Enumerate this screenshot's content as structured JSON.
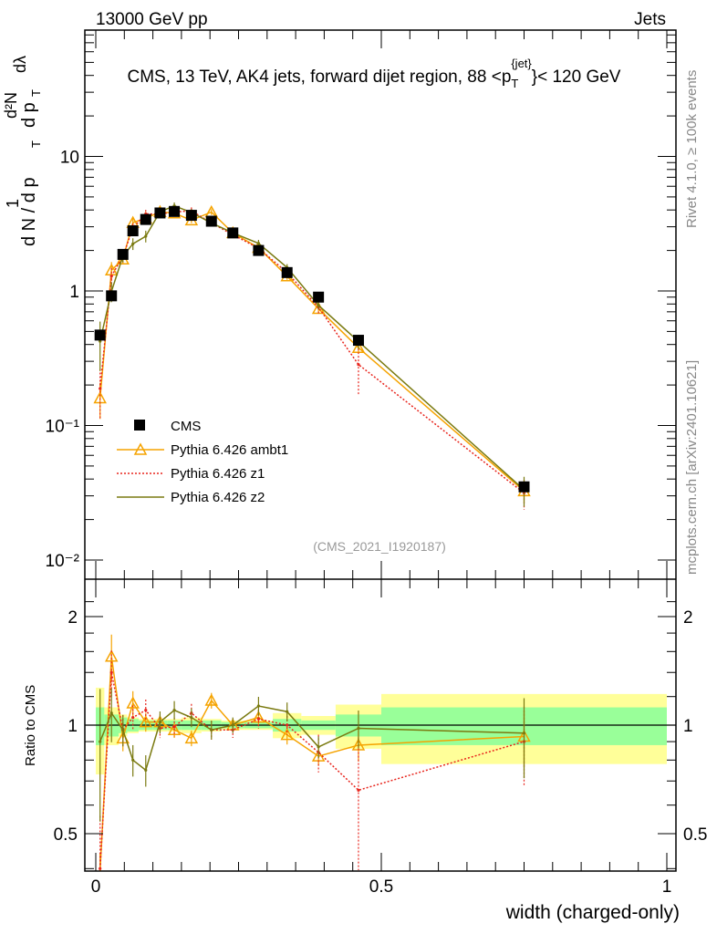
{
  "header": {
    "left": "13000 GeV pp",
    "right": "Jets"
  },
  "side_text": {
    "rivet": "Rivet 4.1.0, ≥ 100k events",
    "mcplots": "mcplots.cern.ch [arXiv:2401.10621]"
  },
  "chart_data": {
    "type": "line",
    "title": "CMS, 13 TeV, AK4 jets, forward dijet region, 88 <p_T^{jet}< 120 GeV",
    "title_parts": {
      "pre": "CMS, 13 TeV, AK4 jets, forward dijet region, 88 <p",
      "sub": "T",
      "sup": "{jet}",
      "post": "}< 120 GeV"
    },
    "ylabel": "1/N dN/dp_T d²N/dp_T dλ",
    "ylabel_parts": {
      "a": "1",
      "b": "d N / d p",
      "c": "T",
      "d": "d²N",
      "e": "d p",
      "f": "T",
      "g": "dλ"
    },
    "xlabel": "width (charged-only)",
    "ratio_ylabel": "Ratio to CMS",
    "analysis_label": "(CMS_2021_I1920187)",
    "xlim": [
      0,
      1
    ],
    "ylim": [
      0.007,
      80
    ],
    "ratio_ylim": [
      0.4,
      2.4
    ],
    "x_ticks": [
      "0",
      "0.5",
      "1"
    ],
    "y_ticks": [
      "10⁻²",
      "10⁻¹",
      "1",
      "10"
    ],
    "ratio_ticks": [
      "0.5",
      "1",
      "2"
    ],
    "legend_placement": "left-center",
    "x": [
      0.0075,
      0.0275,
      0.0475,
      0.065,
      0.0875,
      0.1125,
      0.1375,
      0.1675,
      0.2025,
      0.24,
      0.285,
      0.335,
      0.39,
      0.46,
      0.75
    ],
    "bin_edges": [
      0,
      0.015,
      0.04,
      0.055,
      0.075,
      0.1,
      0.125,
      0.15,
      0.185,
      0.22,
      0.26,
      0.31,
      0.36,
      0.42,
      0.5,
      1
    ],
    "cms": {
      "name": "CMS",
      "values": [
        0.47,
        0.92,
        1.87,
        2.8,
        3.4,
        3.8,
        3.9,
        3.65,
        3.3,
        2.7,
        2.0,
        1.37,
        0.9,
        0.43,
        0.035
      ],
      "stat_band": [
        0.12,
        0.07,
        0.05,
        0.04,
        0.03,
        0.03,
        0.03,
        0.03,
        0.03,
        0.02,
        0.02,
        0.04,
        0.03,
        0.07,
        0.12
      ],
      "total_band": [
        0.27,
        0.12,
        0.07,
        0.05,
        0.04,
        0.04,
        0.04,
        0.05,
        0.04,
        0.03,
        0.03,
        0.08,
        0.06,
        0.14,
        0.22
      ]
    },
    "series": [
      {
        "name": "Pythia 6.426 ambt1",
        "color": "#f5a300",
        "ratio": [
          0.34,
          1.55,
          0.92,
          1.15,
          1.02,
          1.02,
          0.97,
          0.92,
          1.17,
          1.0,
          1.05,
          0.94,
          0.82,
          0.88,
          0.93
        ],
        "rel_err": [
          0.3,
          0.15,
          0.08,
          0.08,
          0.06,
          0.05,
          0.05,
          0.05,
          0.05,
          0.04,
          0.05,
          0.06,
          0.06,
          0.1,
          0.18
        ]
      },
      {
        "name": "Pythia 6.426 z1",
        "color": "#e8251d",
        "ratio": [
          0.4,
          1.4,
          0.97,
          1.05,
          1.1,
          0.98,
          0.99,
          1.08,
          0.97,
          0.97,
          1.04,
          1.0,
          0.84,
          0.66,
          0.9
        ],
        "rel_err": [
          0.4,
          0.15,
          0.1,
          0.08,
          0.07,
          0.06,
          0.06,
          0.06,
          0.06,
          0.05,
          0.06,
          0.06,
          0.12,
          0.4,
          0.25
        ]
      },
      {
        "name": "Pythia 6.426 z2",
        "color": "#7a7a10",
        "ratio": [
          0.9,
          1.08,
          0.97,
          0.8,
          0.75,
          1.02,
          1.1,
          1.05,
          0.97,
          1.0,
          1.13,
          1.09,
          0.87,
          0.98,
          0.95
        ],
        "rel_err": [
          0.4,
          0.17,
          0.1,
          0.1,
          0.1,
          0.07,
          0.06,
          0.06,
          0.06,
          0.05,
          0.06,
          0.06,
          0.07,
          0.12,
          0.25
        ]
      }
    ]
  }
}
